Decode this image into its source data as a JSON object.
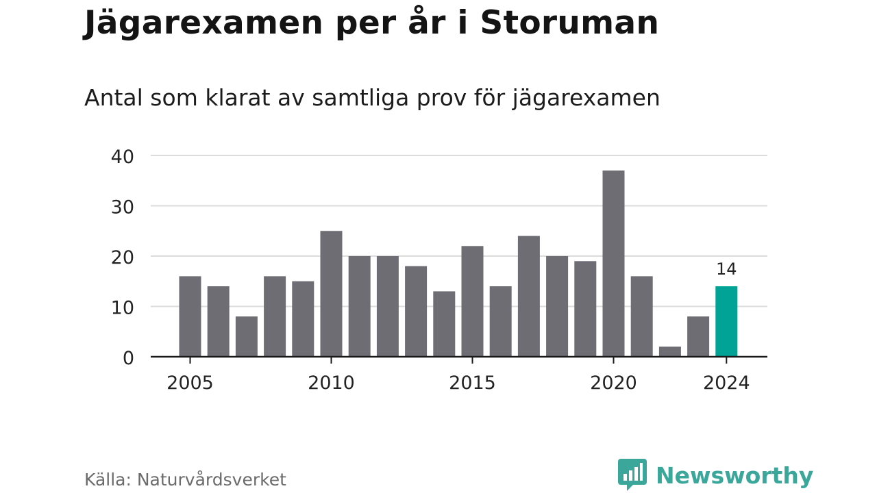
{
  "header": {
    "title": "Jägarexamen per år i Storuman",
    "subtitle": "Antal som klarat av samtliga prov för jägarexamen"
  },
  "footer": {
    "source": "Källa: Naturvårdsverket",
    "brand_name": "Newsworthy",
    "brand_icon": "bar-chart-speech-bubble-icon"
  },
  "colors": {
    "bar": "#6e6d73",
    "highlight": "#00a396",
    "grid": "#dcdcdc",
    "axis": "#1a1a1a",
    "brand": "#3aa79a"
  },
  "chart_data": {
    "type": "bar",
    "title": "Antal som klarat av samtliga prov för jägarexamen",
    "xlabel": "",
    "ylabel": "",
    "x": [
      2005,
      2006,
      2007,
      2008,
      2009,
      2010,
      2011,
      2012,
      2013,
      2014,
      2015,
      2016,
      2017,
      2018,
      2019,
      2020,
      2021,
      2022,
      2023,
      2024
    ],
    "values": [
      16,
      14,
      8,
      16,
      15,
      25,
      20,
      20,
      18,
      13,
      22,
      14,
      24,
      20,
      19,
      37,
      16,
      2,
      8,
      14
    ],
    "x_ticks": [
      "2005",
      "2010",
      "2015",
      "2020",
      "2024"
    ],
    "y_ticks": [
      0,
      10,
      20,
      30,
      40
    ],
    "ylim": [
      0,
      40
    ],
    "highlight": {
      "x": 2024,
      "label": "14"
    },
    "grid": true,
    "legend": "none"
  }
}
